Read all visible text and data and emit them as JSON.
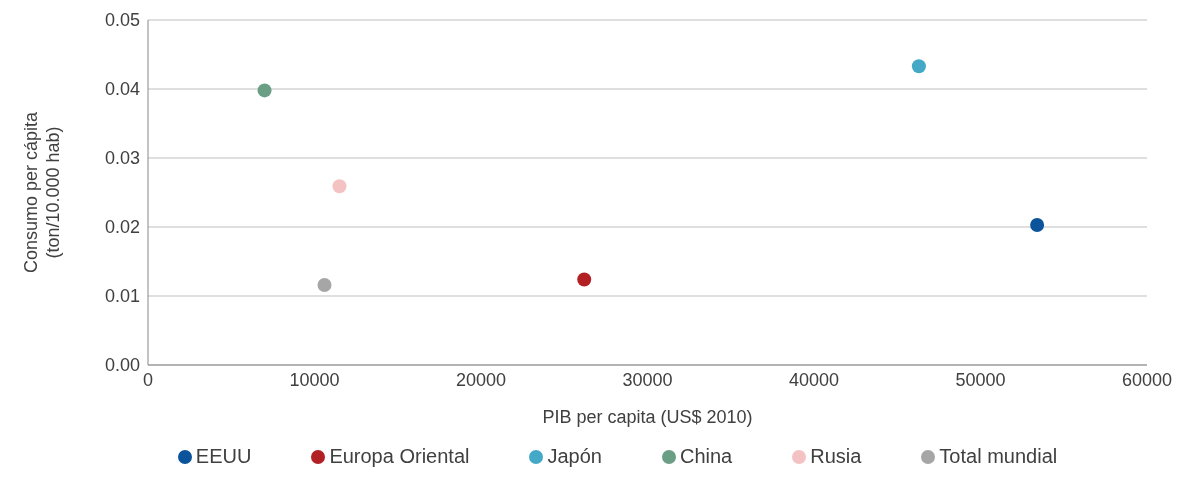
{
  "chart_data": {
    "type": "scatter",
    "xlabel": "PIB per capita (US$ 2010)",
    "ylabel": "Consumo per cápita (ton/10.000 hab)",
    "series": [
      {
        "name": "EEUU",
        "color": "#0b549c",
        "x": [
          53400
        ],
        "values": [
          0.0203
        ]
      },
      {
        "name": "Europa Oriental",
        "color": "#b22024",
        "x": [
          26200
        ],
        "values": [
          0.0124
        ]
      },
      {
        "name": "Japón",
        "color": "#44a9c6",
        "x": [
          46300
        ],
        "values": [
          0.0433
        ]
      },
      {
        "name": "China",
        "color": "#6b9f85",
        "x": [
          7000
        ],
        "values": [
          0.0398
        ]
      },
      {
        "name": "Rusia",
        "color": "#f4c2c2",
        "x": [
          11500
        ],
        "values": [
          0.0259
        ]
      },
      {
        "name": "Total mundial",
        "color": "#a6a6a6",
        "x": [
          10600
        ],
        "values": [
          0.0116
        ]
      }
    ],
    "xlim": [
      0,
      60000
    ],
    "xticks": [
      0,
      10000,
      20000,
      30000,
      40000,
      50000,
      60000
    ],
    "ylim": [
      0,
      0.05
    ],
    "yticks": [
      {
        "value": 0,
        "label": "0.00"
      },
      {
        "value": 0.01,
        "label": "0.01"
      },
      {
        "value": 0.02,
        "label": "0.02"
      },
      {
        "value": 0.03,
        "label": "0.03"
      },
      {
        "value": 0.04,
        "label": "0.04"
      },
      {
        "value": 0.05,
        "label": "0.05"
      }
    ],
    "grid": "y",
    "legend": "bottom",
    "marker": "circle"
  }
}
